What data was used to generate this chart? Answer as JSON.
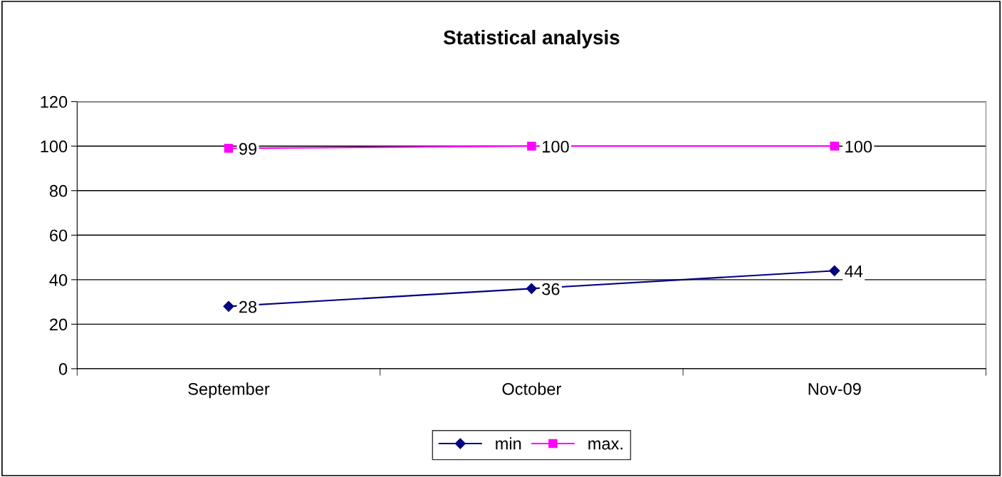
{
  "chart_data": {
    "type": "line",
    "title": "Statistical analysis",
    "categories": [
      "September",
      "October",
      "Nov-09"
    ],
    "series": [
      {
        "name": "min",
        "color": "#000080",
        "marker": "diamond",
        "values": [
          28,
          36,
          44
        ]
      },
      {
        "name": "max.",
        "color": "#ff00ff",
        "marker": "square",
        "values": [
          99,
          100,
          100
        ]
      }
    ],
    "ylim": [
      0,
      120
    ],
    "yticks": [
      0,
      20,
      40,
      60,
      80,
      100,
      120
    ],
    "grid": "y",
    "legend": "bottom",
    "data_labels": true,
    "line_style": "solid"
  }
}
